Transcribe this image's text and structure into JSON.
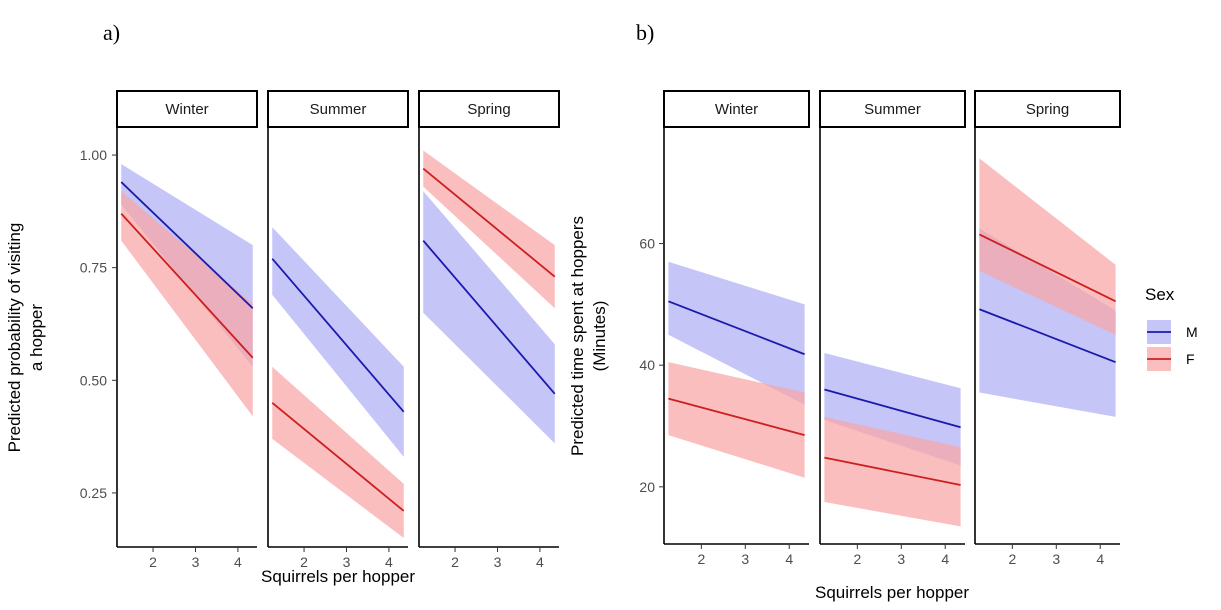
{
  "figure": {
    "panel_a_label": "a)",
    "panel_b_label": "b)"
  },
  "legend": {
    "title": "Sex",
    "entries": [
      {
        "label": "M",
        "line_color": "#1a1aad",
        "fill_color": "#aeaef5"
      },
      {
        "label": "F",
        "line_color": "#cc1f1f",
        "fill_color": "#f8a5a5"
      }
    ]
  },
  "chart_data": [
    {
      "type": "line",
      "panel": "a)",
      "facets": [
        "Winter",
        "Summer",
        "Spring"
      ],
      "xlabel": "Squirrels per hopper",
      "ylabel_lines": [
        "Predicted probability of visiting",
        "a hopper"
      ],
      "x_ticks": [
        2,
        3,
        4
      ],
      "x_ticklabels": [
        "2",
        "3",
        "4"
      ],
      "xlim": [
        1.15,
        4.45
      ],
      "y_ticks": [
        0.25,
        0.5,
        0.75,
        1.0
      ],
      "y_ticklabels": [
        "0.25",
        "0.50",
        "0.75",
        "1.00"
      ],
      "ylim": [
        0.13,
        1.06
      ],
      "grid": false,
      "series": [
        {
          "name": "M",
          "x": [
            1.25,
            4.35
          ],
          "facet_values": {
            "Winter": {
              "y": [
                0.94,
                0.66
              ],
              "lower": [
                0.89,
                0.53
              ],
              "upper": [
                0.98,
                0.8
              ]
            },
            "Summer": {
              "y": [
                0.77,
                0.43
              ],
              "lower": [
                0.69,
                0.33
              ],
              "upper": [
                0.84,
                0.53
              ]
            },
            "Spring": {
              "y": [
                0.81,
                0.47
              ],
              "lower": [
                0.65,
                0.36
              ],
              "upper": [
                0.92,
                0.58
              ]
            }
          }
        },
        {
          "name": "F",
          "x": [
            1.25,
            4.35
          ],
          "facet_values": {
            "Winter": {
              "y": [
                0.87,
                0.55
              ],
              "lower": [
                0.81,
                0.42
              ],
              "upper": [
                0.92,
                0.67
              ]
            },
            "Summer": {
              "y": [
                0.45,
                0.21
              ],
              "lower": [
                0.37,
                0.15
              ],
              "upper": [
                0.53,
                0.27
              ]
            },
            "Spring": {
              "y": [
                0.97,
                0.73
              ],
              "lower": [
                0.93,
                0.66
              ],
              "upper": [
                1.01,
                0.8
              ]
            }
          }
        }
      ]
    },
    {
      "type": "line",
      "panel": "b)",
      "facets": [
        "Winter",
        "Summer",
        "Spring"
      ],
      "xlabel": "Squirrels per hopper",
      "ylabel_lines": [
        "Predicted time spent at hoppers",
        "(Minutes)"
      ],
      "x_ticks": [
        2,
        3,
        4
      ],
      "x_ticklabels": [
        "2",
        "3",
        "4"
      ],
      "xlim": [
        1.15,
        4.45
      ],
      "y_ticks": [
        20,
        40,
        60
      ],
      "y_ticklabels": [
        "20",
        "40",
        "60"
      ],
      "ylim": [
        10.6,
        79
      ],
      "grid": false,
      "series": [
        {
          "name": "M",
          "x": [
            1.25,
            4.35
          ],
          "facet_values": {
            "Winter": {
              "y": [
                50.5,
                41.8
              ],
              "lower": [
                45.0,
                33.5
              ],
              "upper": [
                57.0,
                50.0
              ]
            },
            "Summer": {
              "y": [
                36.0,
                29.8
              ],
              "lower": [
                31.0,
                23.5
              ],
              "upper": [
                42.0,
                36.2
              ]
            },
            "Spring": {
              "y": [
                49.2,
                40.5
              ],
              "lower": [
                35.5,
                31.5
              ],
              "upper": [
                62.5,
                49.0
              ]
            }
          }
        },
        {
          "name": "F",
          "x": [
            1.25,
            4.35
          ],
          "facet_values": {
            "Winter": {
              "y": [
                34.5,
                28.5
              ],
              "lower": [
                28.5,
                21.5
              ],
              "upper": [
                40.5,
                35.5
              ]
            },
            "Summer": {
              "y": [
                24.8,
                20.3
              ],
              "lower": [
                17.5,
                13.5
              ],
              "upper": [
                31.5,
                26.5
              ]
            },
            "Spring": {
              "y": [
                61.5,
                50.5
              ],
              "lower": [
                55.5,
                45.0
              ],
              "upper": [
                74.0,
                56.5
              ]
            }
          }
        }
      ]
    }
  ]
}
